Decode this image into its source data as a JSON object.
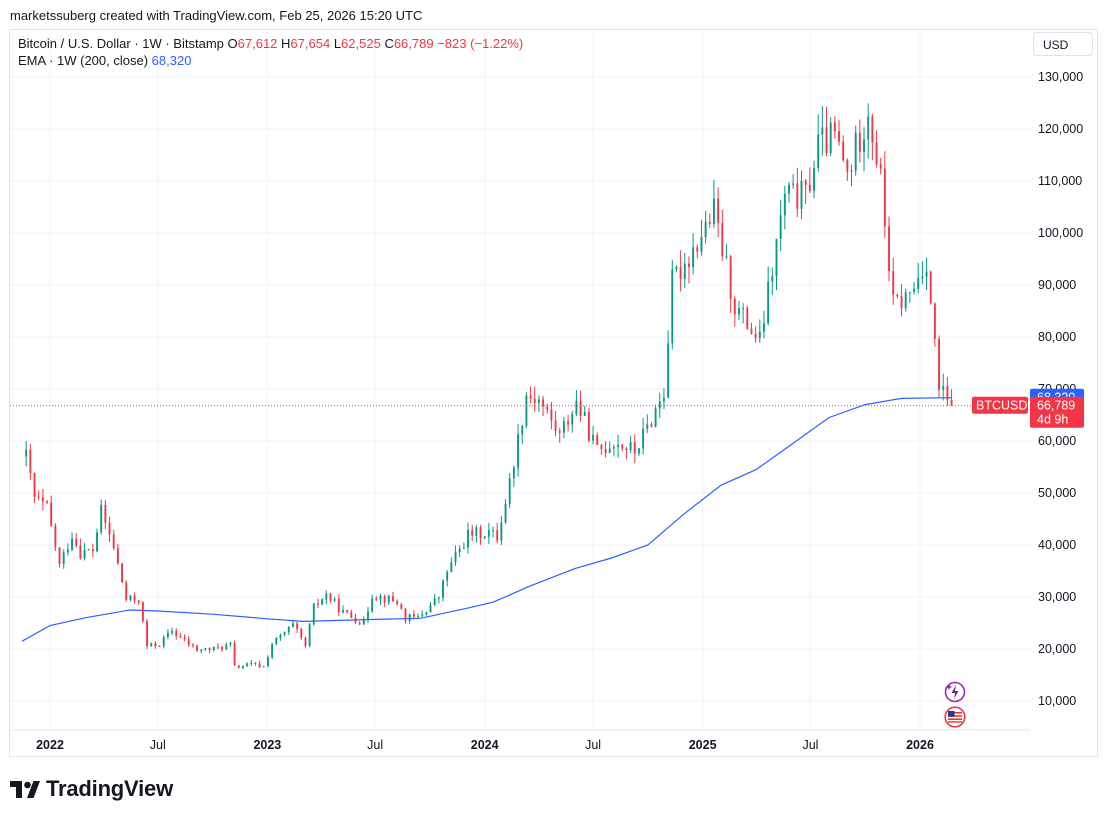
{
  "attribution": "marketssuberg created with TradingView.com, Feb 25, 2026 15:20 UTC",
  "legend": {
    "symbol": "Bitcoin / U.S. Dollar · 1W · Bitstamp",
    "open_label": "O",
    "open": "67,612",
    "high_label": "H",
    "high": "67,654",
    "low_label": "L",
    "low": "62,525",
    "close_label": "C",
    "close": "66,789",
    "change": "−823 (−1.22%)",
    "ema_label": "EMA · 1W (200, close)",
    "ema_value": "68,320"
  },
  "currency_button": "USD",
  "brand": "TradingView",
  "colors": {
    "up": "#089981",
    "down": "#f23645",
    "ema": "#2962ff",
    "grid": "#f0f3fa",
    "text": "#131722"
  },
  "chart_data": {
    "type": "candlestick",
    "symbol": "BTCUSD",
    "timeframe": "1W",
    "y_ticks": [
      "10,000",
      "20,000",
      "30,000",
      "40,000",
      "50,000",
      "60,000",
      "70,000",
      "80,000",
      "90,000",
      "100,000",
      "110,000",
      "120,000",
      "130,000"
    ],
    "x_ticks": [
      {
        "label": "2022",
        "date": "2022-01-01",
        "bold": true
      },
      {
        "label": "Jul",
        "date": "2022-07-01",
        "bold": false
      },
      {
        "label": "2023",
        "date": "2023-01-01",
        "bold": true
      },
      {
        "label": "Jul",
        "date": "2023-07-01",
        "bold": false
      },
      {
        "label": "2024",
        "date": "2024-01-01",
        "bold": true
      },
      {
        "label": "Jul",
        "date": "2024-07-01",
        "bold": false
      },
      {
        "label": "2025",
        "date": "2025-01-01",
        "bold": true
      },
      {
        "label": "Jul",
        "date": "2025-07-01",
        "bold": false
      },
      {
        "label": "2026",
        "date": "2026-01-01",
        "bold": true
      }
    ],
    "price_labels": {
      "ema": {
        "value": 68320,
        "text": "68,320"
      },
      "last": {
        "value": 66789,
        "name": "BTCUSD",
        "text": "66,789",
        "countdown": "4d 9h"
      }
    },
    "close_path": [
      [
        "2021-11-22",
        57000
      ],
      [
        "2021-12-06",
        49000
      ],
      [
        "2021-12-27",
        47000
      ],
      [
        "2022-01-17",
        36000
      ],
      [
        "2022-02-07",
        42000
      ],
      [
        "2022-02-21",
        38500
      ],
      [
        "2022-03-14",
        39000
      ],
      [
        "2022-03-28",
        46500
      ],
      [
        "2022-04-18",
        39500
      ],
      [
        "2022-05-09",
        29500
      ],
      [
        "2022-05-30",
        29500
      ],
      [
        "2022-06-13",
        20500
      ],
      [
        "2022-07-04",
        21000
      ],
      [
        "2022-07-25",
        23500
      ],
      [
        "2022-08-15",
        21500
      ],
      [
        "2022-09-05",
        19800
      ],
      [
        "2022-10-03",
        20000
      ],
      [
        "2022-10-31",
        20800
      ],
      [
        "2022-11-07",
        16500
      ],
      [
        "2022-12-05",
        17000
      ],
      [
        "2022-12-26",
        16600
      ],
      [
        "2023-01-09",
        21000
      ],
      [
        "2023-02-13",
        24500
      ],
      [
        "2023-03-06",
        20500
      ],
      [
        "2023-03-20",
        28000
      ],
      [
        "2023-04-10",
        30500
      ],
      [
        "2023-05-08",
        27000
      ],
      [
        "2023-06-12",
        25000
      ],
      [
        "2023-06-26",
        30500
      ],
      [
        "2023-08-07",
        29000
      ],
      [
        "2023-08-21",
        26000
      ],
      [
        "2023-09-11",
        26000
      ],
      [
        "2023-10-16",
        30000
      ],
      [
        "2023-10-30",
        35000
      ],
      [
        "2023-12-04",
        42000
      ],
      [
        "2024-01-08",
        42500
      ],
      [
        "2024-01-22",
        41500
      ],
      [
        "2024-02-12",
        52000
      ],
      [
        "2024-03-11",
        69000
      ],
      [
        "2024-04-01",
        68000
      ],
      [
        "2024-05-06",
        61000
      ],
      [
        "2024-06-03",
        67500
      ],
      [
        "2024-07-08",
        58000
      ],
      [
        "2024-08-05",
        60000
      ],
      [
        "2024-09-09",
        58000
      ],
      [
        "2024-09-30",
        62500
      ],
      [
        "2024-10-28",
        69500
      ],
      [
        "2024-11-11",
        90500
      ],
      [
        "2024-12-16",
        97000
      ],
      [
        "2025-01-20",
        104000
      ],
      [
        "2025-02-24",
        86000
      ],
      [
        "2025-04-07",
        79000
      ],
      [
        "2025-05-19",
        107000
      ],
      [
        "2025-06-23",
        107000
      ],
      [
        "2025-07-14",
        117000
      ],
      [
        "2025-08-11",
        118500
      ],
      [
        "2025-09-01",
        111000
      ],
      [
        "2025-10-06",
        124000
      ],
      [
        "2025-10-27",
        110000
      ],
      [
        "2025-11-17",
        86000
      ],
      [
        "2025-12-15",
        88000
      ],
      [
        "2026-01-12",
        95000
      ],
      [
        "2026-02-02",
        70000
      ],
      [
        "2026-02-16",
        67600
      ],
      [
        "2026-02-23",
        66789
      ]
    ],
    "ema_path": [
      [
        "2021-11-15",
        21500
      ],
      [
        "2022-01-01",
        24500
      ],
      [
        "2022-03-01",
        26000
      ],
      [
        "2022-05-15",
        27500
      ],
      [
        "2022-07-01",
        27300
      ],
      [
        "2022-10-01",
        26700
      ],
      [
        "2023-01-01",
        25800
      ],
      [
        "2023-03-01",
        25300
      ],
      [
        "2023-07-01",
        25700
      ],
      [
        "2023-09-15",
        25900
      ],
      [
        "2023-12-01",
        27800
      ],
      [
        "2024-01-15",
        29000
      ],
      [
        "2024-03-15",
        32000
      ],
      [
        "2024-06-01",
        35500
      ],
      [
        "2024-08-01",
        37500
      ],
      [
        "2024-10-01",
        40000
      ],
      [
        "2024-12-01",
        46000
      ],
      [
        "2025-02-01",
        51500
      ],
      [
        "2025-04-01",
        54500
      ],
      [
        "2025-06-01",
        59500
      ],
      [
        "2025-08-01",
        64500
      ],
      [
        "2025-10-01",
        67000
      ],
      [
        "2025-12-01",
        68200
      ],
      [
        "2026-02-23",
        68320
      ]
    ]
  }
}
